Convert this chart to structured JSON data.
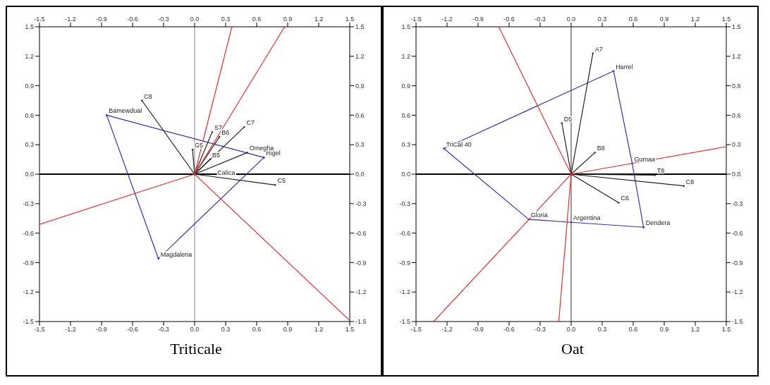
{
  "chart_data": [
    {
      "type": "scatter",
      "title": "Triticale",
      "xlim": [
        -1.5,
        1.5
      ],
      "xticks": [
        -1.5,
        -1.2,
        -0.9,
        -0.6,
        -0.3,
        {
          "value": 0,
          "label": "0.0"
        },
        0.3,
        0.6,
        0.9,
        1.2,
        1.5
      ],
      "x2lim": [
        -1.5,
        1.5
      ],
      "x2ticks": [
        -1.5,
        -1.2,
        -0.9,
        -0.6,
        -0.3,
        {
          "value": 0,
          "label": "0.0"
        },
        0.3,
        0.6,
        0.9,
        1.2,
        1.5
      ],
      "ylim": [
        -1.5,
        1.5
      ],
      "yticks": [
        -1.5,
        -1.2,
        -0.9,
        -0.6,
        -0.3,
        {
          "value": 0,
          "label": "0.0"
        },
        0.3,
        0.6,
        0.9,
        1.2,
        1.5
      ],
      "y2lim": [
        -1.5,
        1.5
      ],
      "y2ticks": [
        -1.5,
        -1.2,
        -0.9,
        -0.6,
        -0.3,
        {
          "value": 0,
          "label": "0.0"
        },
        0.3,
        0.6,
        0.9,
        1.2,
        1.5
      ],
      "ref_lines": [
        {
          "axis": "y",
          "value": 0,
          "color": "#000000"
        },
        {
          "axis": "x",
          "value": 0,
          "color": "#999999"
        }
      ],
      "series": [
        {
          "type": "line",
          "color": "#3333aa",
          "x": [
            -0.85,
            0.67
          ],
          "values": [
            0.6,
            0.17
          ]
        },
        {
          "type": "line",
          "color": "#3333aa",
          "x": [
            0.67,
            -0.35
          ],
          "values": [
            0.17,
            -0.86
          ]
        },
        {
          "type": "line",
          "color": "#3333aa",
          "x": [
            -0.35,
            -0.85
          ],
          "values": [
            -0.86,
            0.6
          ]
        },
        {
          "type": "line",
          "color": "#222222",
          "x": [
            0,
            -0.51
          ],
          "values": [
            0,
            0.75
          ]
        },
        {
          "type": "line",
          "color": "#222222",
          "x": [
            0,
            0.48
          ],
          "values": [
            0,
            0.48
          ]
        },
        {
          "type": "line",
          "color": "#222222",
          "x": [
            0,
            0.51
          ],
          "values": [
            0,
            0.22
          ]
        },
        {
          "type": "line",
          "color": "#222222",
          "x": [
            0,
            0.15
          ],
          "values": [
            0,
            0.15
          ]
        },
        {
          "type": "line",
          "color": "#222222",
          "x": [
            0,
            0.17
          ],
          "values": [
            0,
            0.43
          ]
        },
        {
          "type": "line",
          "color": "#222222",
          "x": [
            0,
            0.78
          ],
          "values": [
            0,
            -0.11
          ]
        },
        {
          "type": "line",
          "color": "#222222",
          "x": [
            0,
            -0.02
          ],
          "values": [
            0,
            0.25
          ]
        },
        {
          "type": "line",
          "color": "#222222",
          "x": [
            0,
            0.24
          ],
          "values": [
            0,
            0.38
          ]
        },
        {
          "type": "line",
          "color": "#dd3333",
          "x": [
            0,
            0.36
          ],
          "values": [
            0,
            1.5
          ]
        },
        {
          "type": "line",
          "color": "#dd3333",
          "x": [
            0,
            0.87
          ],
          "values": [
            0,
            1.5
          ]
        },
        {
          "type": "line",
          "color": "#dd3333",
          "x": [
            0,
            -1.5
          ],
          "values": [
            0,
            -0.51
          ]
        },
        {
          "type": "line",
          "color": "#dd3333",
          "x": [
            0,
            1.5
          ],
          "values": [
            0,
            -1.49
          ]
        }
      ],
      "annotations": [
        {
          "text": "Bamewdual",
          "x": -0.85,
          "y": 0.6
        },
        {
          "text": "Magdalena",
          "x": -0.35,
          "y": -0.86
        },
        {
          "text": "Rigel",
          "x": 0.67,
          "y": 0.17
        },
        {
          "text": "C8",
          "x": -0.51,
          "y": 0.75
        },
        {
          "text": "C7",
          "x": 0.48,
          "y": 0.48
        },
        {
          "text": "Omegha",
          "x": 0.51,
          "y": 0.22
        },
        {
          "text": "B5",
          "x": 0.15,
          "y": 0.15
        },
        {
          "text": "S7",
          "x": 0.17,
          "y": 0.43
        },
        {
          "text": "C5",
          "x": 0.78,
          "y": -0.11
        },
        {
          "text": "G5",
          "x": -0.02,
          "y": 0.25
        },
        {
          "text": "B6",
          "x": 0.24,
          "y": 0.38
        },
        {
          "text": "Calica",
          "x": 0.2,
          "y": -0.028
        }
      ]
    },
    {
      "type": "scatter",
      "title": "Oat",
      "xlim": [
        -1.5,
        1.5
      ],
      "xticks": [
        -1.5,
        -1.2,
        -0.9,
        -0.6,
        -0.3,
        {
          "value": 0,
          "label": "0.0"
        },
        0.3,
        0.6,
        0.9,
        1.2,
        1.5
      ],
      "x2lim": [
        -1.5,
        1.5
      ],
      "x2ticks": [
        -1.5,
        -1.2,
        -0.9,
        -0.6,
        -0.3,
        {
          "value": 0,
          "label": "0.0"
        },
        0.3,
        0.6,
        0.9,
        1.2,
        1.5
      ],
      "ylim": [
        -1.5,
        1.5
      ],
      "yticks": [
        -1.5,
        -1.2,
        -0.9,
        -0.6,
        -0.3,
        {
          "value": 0,
          "label": "0.0"
        },
        0.3,
        0.6,
        0.9,
        1.2,
        1.5
      ],
      "y2lim": [
        -1.5,
        1.5
      ],
      "y2ticks": [
        -1.5,
        -1.2,
        -0.9,
        -0.6,
        -0.3,
        {
          "value": 0,
          "label": "0.0"
        },
        0.3,
        0.6,
        0.9,
        1.2,
        1.5
      ],
      "ref_lines": [
        {
          "axis": "y",
          "value": 0,
          "color": "#000000"
        },
        {
          "axis": "x",
          "value": 0,
          "color": "#555555"
        }
      ],
      "series": [
        {
          "type": "line",
          "color": "#3333aa",
          "x": [
            -1.23,
            0.41
          ],
          "values": [
            0.26,
            1.05
          ]
        },
        {
          "type": "line",
          "color": "#3333aa",
          "x": [
            0.41,
            0.59,
            0.7
          ],
          "values": [
            1.05,
            0.11,
            -0.54
          ]
        },
        {
          "type": "line",
          "color": "#3333aa",
          "x": [
            0.7,
            0,
            -0.41
          ],
          "values": [
            -0.54,
            -0.49,
            -0.46
          ]
        },
        {
          "type": "line",
          "color": "#3333aa",
          "x": [
            -0.41,
            -1.23
          ],
          "values": [
            -0.46,
            0.26
          ]
        },
        {
          "type": "line",
          "color": "#222222",
          "x": [
            0,
            0.21
          ],
          "values": [
            0,
            1.23
          ]
        },
        {
          "type": "line",
          "color": "#222222",
          "x": [
            0,
            -0.09
          ],
          "values": [
            0,
            0.52
          ]
        },
        {
          "type": "line",
          "color": "#222222",
          "x": [
            0,
            0.23
          ],
          "values": [
            0,
            0.22
          ]
        },
        {
          "type": "line",
          "color": "#222222",
          "x": [
            0,
            1.09
          ],
          "values": [
            0,
            -0.12
          ]
        },
        {
          "type": "line",
          "color": "#222222",
          "x": [
            0,
            0.46
          ],
          "values": [
            0,
            -0.29
          ]
        },
        {
          "type": "line",
          "color": "#222222",
          "x": [
            0,
            0.81
          ],
          "values": [
            0,
            -0.01
          ]
        },
        {
          "type": "line",
          "color": "#dd3333",
          "x": [
            0,
            -0.7
          ],
          "values": [
            0,
            1.5
          ]
        },
        {
          "type": "line",
          "color": "#dd3333",
          "x": [
            0,
            1.5
          ],
          "values": [
            0,
            0.28
          ]
        },
        {
          "type": "line",
          "color": "#dd3333",
          "x": [
            0,
            -1.33
          ],
          "values": [
            0,
            -1.5
          ]
        },
        {
          "type": "line",
          "color": "#dd3333",
          "x": [
            0,
            -0.12
          ],
          "values": [
            0,
            -1.5
          ]
        }
      ],
      "annotations": [
        {
          "text": "TriCal 40",
          "x": -1.23,
          "y": 0.26
        },
        {
          "text": "Harrel",
          "x": 0.41,
          "y": 1.05
        },
        {
          "text": "Dendera",
          "x": 0.7,
          "y": -0.54
        },
        {
          "text": "Gloria",
          "x": -0.41,
          "y": -0.46
        },
        {
          "text": "Argentina",
          "x": 0,
          "y": -0.49
        },
        {
          "text": "Gumaa",
          "x": 0.59,
          "y": 0.11
        },
        {
          "text": "A7",
          "x": 0.21,
          "y": 1.23
        },
        {
          "text": "D5",
          "x": -0.09,
          "y": 0.52
        },
        {
          "text": "B8",
          "x": 0.23,
          "y": 0.22
        },
        {
          "text": "C8",
          "x": 1.09,
          "y": -0.12
        },
        {
          "text": "C6",
          "x": 0.46,
          "y": -0.29
        },
        {
          "text": "T8",
          "x": 0.81,
          "y": -0.01
        }
      ]
    }
  ]
}
